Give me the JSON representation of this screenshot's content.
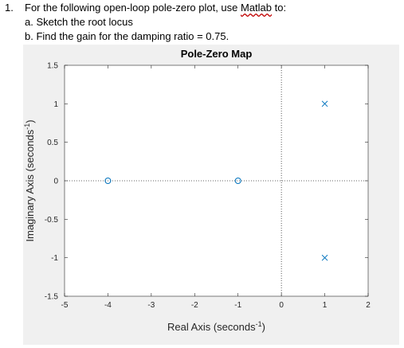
{
  "question": {
    "number": "1.",
    "prompt_before": "For the following open-loop pole-zero plot, use ",
    "prompt_link": "Matlab",
    "prompt_after": " to:",
    "item_a": "a. Sketch the root locus",
    "item_b": "b. Find the gain for the damping ratio = 0.75."
  },
  "chart_data": {
    "type": "scatter",
    "title": "Pole-Zero Map",
    "xlabel_main": "Real Axis (seconds",
    "xlabel_sup": "-1",
    "xlabel_end": ")",
    "ylabel_main": "Imaginary Axis (seconds",
    "ylabel_sup": "-1",
    "ylabel_end": ")",
    "xlim": [
      -5,
      2
    ],
    "ylim": [
      -1.5,
      1.5
    ],
    "xticks": [
      -5,
      -4,
      -3,
      -2,
      -1,
      0,
      1,
      2
    ],
    "xtick_labels": [
      "-5",
      "-4",
      "-3",
      "-2",
      "-1",
      "0",
      "1",
      "2"
    ],
    "yticks": [
      -1.5,
      -1,
      -0.5,
      0,
      0.5,
      1,
      1.5
    ],
    "ytick_labels": [
      "-1.5",
      "-1",
      "-0.5",
      "0",
      "0.5",
      "1",
      "1.5"
    ],
    "grid": false,
    "reference_lines": {
      "x": 0,
      "y": 0,
      "style": "dotted"
    },
    "poles": [
      {
        "x": 1,
        "y": 1
      },
      {
        "x": 1,
        "y": -1
      }
    ],
    "zeros": [
      {
        "x": -4,
        "y": 0
      },
      {
        "x": -1,
        "y": 0
      }
    ],
    "marker_color": "#0072bd"
  }
}
